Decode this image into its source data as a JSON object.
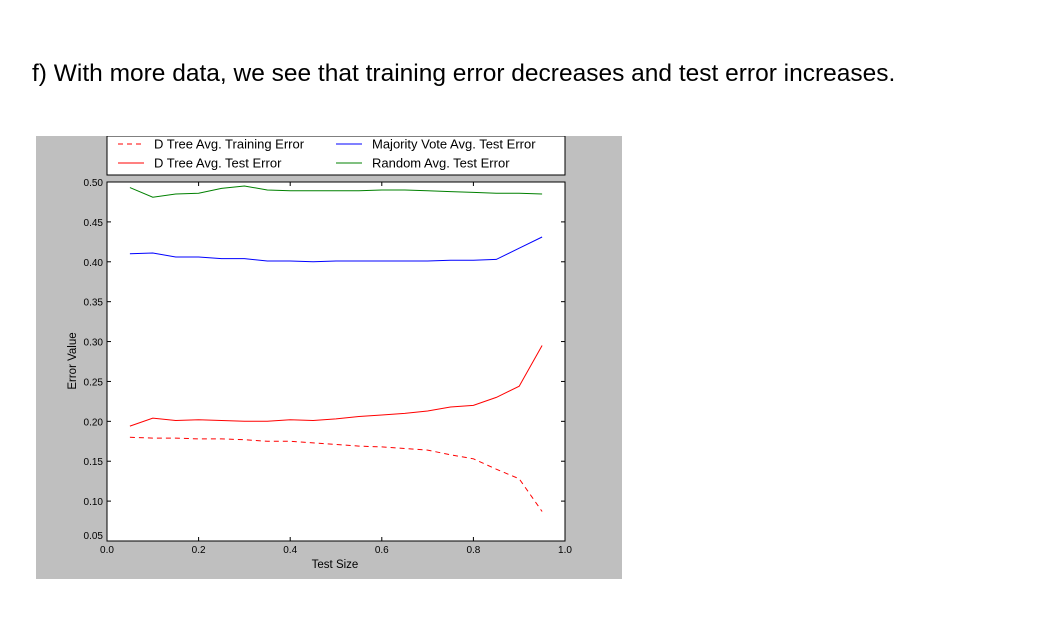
{
  "caption": "f) With more data, we see that training error decreases and test error increases.",
  "chart_data": {
    "type": "line",
    "title": "",
    "xlabel": "Test Size",
    "ylabel": "Error Value",
    "xlim": [
      0.0,
      1.0
    ],
    "ylim": [
      0.05,
      0.5
    ],
    "x_ticks": [
      0.0,
      0.2,
      0.4,
      0.6,
      0.8,
      1.0
    ],
    "x_tick_labels": [
      "0.0",
      "0.2",
      "0.4",
      "0.6",
      "0.8",
      "1.0"
    ],
    "y_ticks": [
      0.05,
      0.1,
      0.15,
      0.2,
      0.25,
      0.3,
      0.35,
      0.4,
      0.45,
      0.5
    ],
    "y_tick_labels": [
      "0.05",
      "0.10",
      "0.15",
      "0.20",
      "0.25",
      "0.30",
      "0.35",
      "0.40",
      "0.45",
      "0.50"
    ],
    "grid": false,
    "legend_position": "top",
    "x": [
      0.05,
      0.1,
      0.15,
      0.2,
      0.25,
      0.3,
      0.35,
      0.4,
      0.45,
      0.5,
      0.55,
      0.6,
      0.65,
      0.7,
      0.75,
      0.8,
      0.85,
      0.9,
      0.95
    ],
    "series": [
      {
        "name": "D Tree Avg. Training Error",
        "color": "#ff0000",
        "dash": true,
        "values": [
          0.18,
          0.179,
          0.179,
          0.178,
          0.178,
          0.177,
          0.175,
          0.175,
          0.173,
          0.171,
          0.169,
          0.168,
          0.166,
          0.164,
          0.158,
          0.153,
          0.14,
          0.128,
          0.087
        ]
      },
      {
        "name": "D Tree Avg. Test Error",
        "color": "#ff0000",
        "dash": false,
        "values": [
          0.194,
          0.204,
          0.201,
          0.202,
          0.201,
          0.2,
          0.2,
          0.202,
          0.201,
          0.203,
          0.206,
          0.208,
          0.21,
          0.213,
          0.218,
          0.22,
          0.23,
          0.244,
          0.295
        ]
      },
      {
        "name": "Majority Vote Avg. Test Error",
        "color": "#0000ff",
        "dash": false,
        "values": [
          0.41,
          0.411,
          0.406,
          0.406,
          0.404,
          0.404,
          0.401,
          0.401,
          0.4,
          0.401,
          0.401,
          0.401,
          0.401,
          0.401,
          0.402,
          0.402,
          0.403,
          0.417,
          0.431
        ]
      },
      {
        "name": "Random Avg. Test Error",
        "color": "#008000",
        "dash": false,
        "values": [
          0.493,
          0.481,
          0.485,
          0.486,
          0.492,
          0.495,
          0.49,
          0.489,
          0.489,
          0.489,
          0.489,
          0.49,
          0.49,
          0.489,
          0.488,
          0.487,
          0.486,
          0.486,
          0.485
        ]
      }
    ]
  }
}
